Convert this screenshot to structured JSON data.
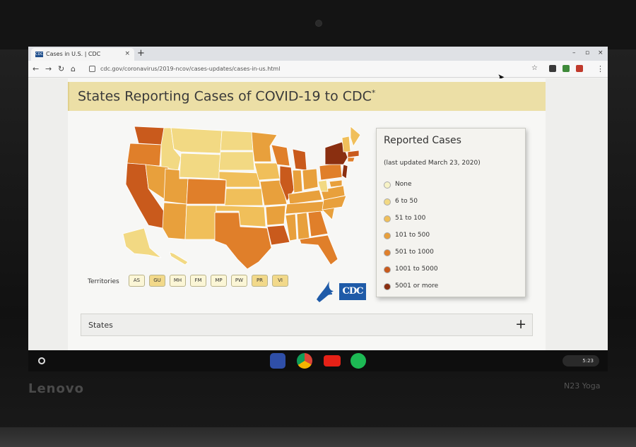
{
  "browser": {
    "tab_title": "Cases in U.S. | CDC",
    "tab_favicon_text": "CDC",
    "url": "cdc.gov/coronavirus/2019-ncov/cases-updates/cases-in-us.html"
  },
  "page": {
    "title": "States Reporting Cases of COVID-19 to CDC",
    "title_mark": "*",
    "territories_label": "Territories",
    "territories": [
      {
        "code": "AS",
        "level": 0
      },
      {
        "code": "GU",
        "level": 1
      },
      {
        "code": "MH",
        "level": 0
      },
      {
        "code": "FM",
        "level": 0
      },
      {
        "code": "MP",
        "level": 0
      },
      {
        "code": "PW",
        "level": 0
      },
      {
        "code": "PR",
        "level": 1
      },
      {
        "code": "VI",
        "level": 1
      }
    ],
    "cdc_logo": "CDC",
    "states_label": "States",
    "expand_symbol": "+"
  },
  "legend": {
    "title": "Reported Cases",
    "updated": "(last updated March 23, 2020)",
    "items": [
      {
        "label": "None",
        "color": "#f7f3c7"
      },
      {
        "label": "6 to 50",
        "color": "#f2d983"
      },
      {
        "label": "51 to 100",
        "color": "#f0bf5a"
      },
      {
        "label": "101 to 500",
        "color": "#e8a03c"
      },
      {
        "label": "501 to 1000",
        "color": "#e07f2a"
      },
      {
        "label": "1001 to 5000",
        "color": "#c95a1c"
      },
      {
        "label": "5001 or more",
        "color": "#8a2f10"
      }
    ]
  },
  "shelf": {
    "time": "5:23"
  },
  "device": {
    "brand": "Lenovo",
    "model": "N23 Yoga"
  }
}
